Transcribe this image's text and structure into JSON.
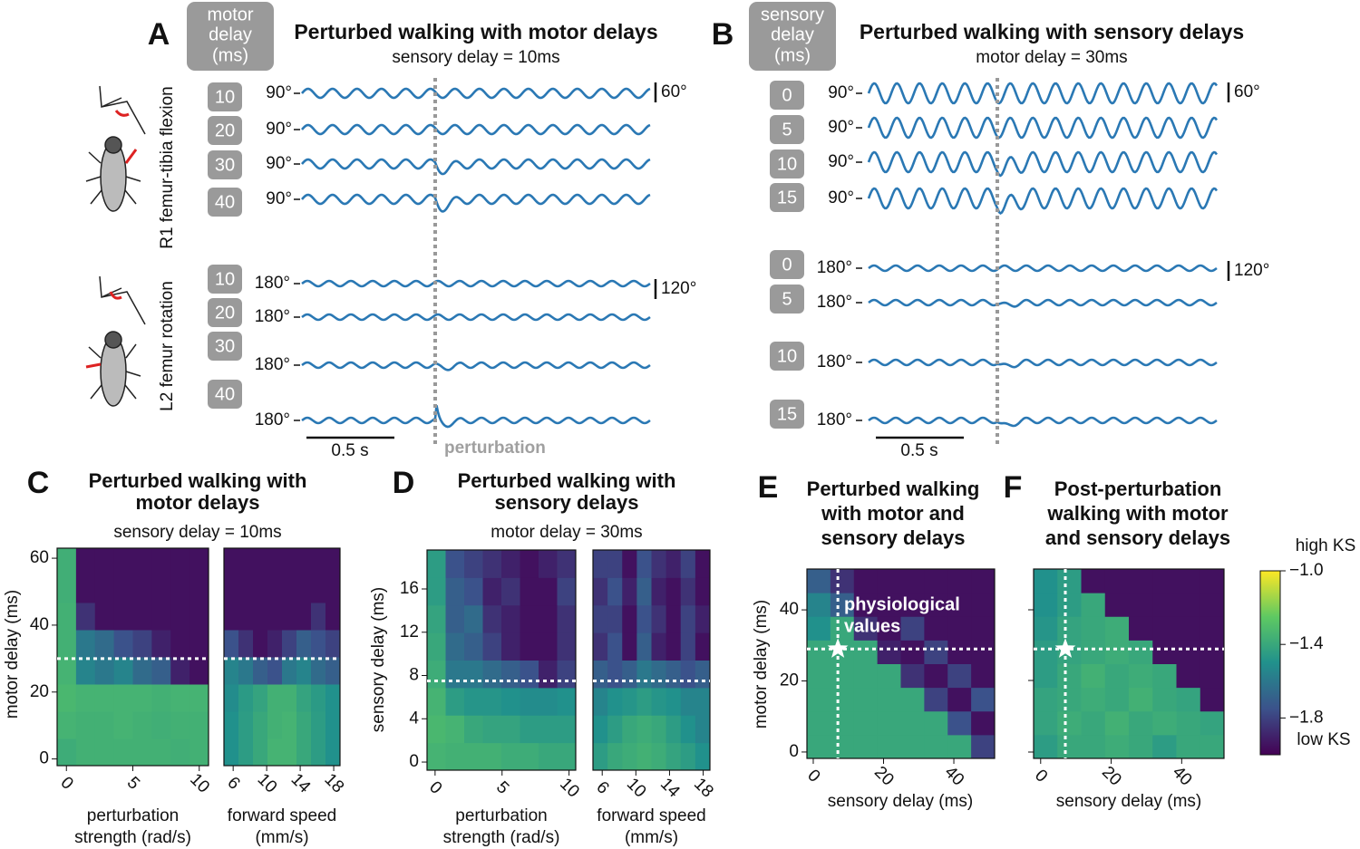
{
  "panel_a": {
    "letter": "A",
    "delay_header": [
      "motor",
      "delay",
      "(ms)"
    ],
    "title": "Perturbed walking with motor delays",
    "subtitle": "sensory delay = 10ms",
    "flexion_label": "R1 femur-tibia flexion",
    "rotation_label": "L2 femur rotation",
    "flexion_delays": [
      10,
      20,
      30,
      40
    ],
    "rotation_delays": [
      10,
      20,
      30,
      40
    ],
    "flexion_offset": "90°",
    "rotation_offset": "180°",
    "flexion_scale": "60°",
    "rotation_scale": "120°",
    "time_scale": "0.5 s",
    "perturbation": "perturbation"
  },
  "panel_b": {
    "letter": "B",
    "delay_header": [
      "sensory",
      "delay",
      "(ms)"
    ],
    "title": "Perturbed walking with sensory delays",
    "subtitle": "motor delay = 30ms",
    "flexion_delays": [
      0,
      5,
      10,
      15
    ],
    "rotation_delays": [
      0,
      5,
      10,
      15
    ],
    "flexion_offset": "90°",
    "rotation_offset": "180°",
    "flexion_scale": "60°",
    "rotation_scale": "120°",
    "time_scale": "0.5 s"
  },
  "panel_c": {
    "letter": "C",
    "title": [
      "Perturbed walking with",
      "motor delays"
    ],
    "subtitle": "sensory delay = 10ms",
    "ylabel": "motor delay (ms)",
    "hline": 30,
    "charts": [
      {
        "type": "heatmap",
        "xlabel": [
          "perturbation",
          "strength (rad/s)"
        ],
        "xlim": [
          -0.7,
          10.7
        ],
        "ylim": [
          -2,
          63
        ],
        "xticks": [
          0,
          5,
          10
        ],
        "yticks": [
          0,
          20,
          40,
          60
        ],
        "values": [
          [
            -1.38,
            -1.36,
            -1.36,
            -1.36,
            -1.36,
            -1.36,
            -1.37,
            -1.36
          ],
          [
            -1.35,
            -1.36,
            -1.36,
            -1.35,
            -1.36,
            -1.37,
            -1.36,
            -1.36
          ],
          [
            -1.33,
            -1.35,
            -1.35,
            -1.35,
            -1.35,
            -1.36,
            -1.35,
            -1.35
          ],
          [
            -1.35,
            -1.55,
            -1.6,
            -1.55,
            -1.65,
            -1.7,
            -1.9,
            -1.95
          ],
          [
            -1.36,
            -1.6,
            -1.65,
            -1.75,
            -1.8,
            -1.9,
            -1.95,
            -1.95
          ],
          [
            -1.36,
            -1.85,
            -1.95,
            -1.95,
            -1.95,
            -1.95,
            -1.95,
            -1.95
          ],
          [
            -1.37,
            -1.95,
            -1.95,
            -1.95,
            -1.95,
            -1.95,
            -1.95,
            -1.95
          ],
          [
            -1.37,
            -1.95,
            -1.95,
            -1.95,
            -1.95,
            -1.95,
            -1.95,
            -1.95
          ]
        ]
      },
      {
        "type": "heatmap",
        "xlabel": [
          "forward speed",
          "(mm/s)"
        ],
        "xlim": [
          4.9,
          18.75
        ],
        "ylim": [
          -2,
          63
        ],
        "xticks": [
          6,
          10,
          14,
          18
        ],
        "values": [
          [
            -1.5,
            -1.45,
            -1.4,
            -1.35,
            -1.35,
            -1.4,
            -1.45,
            -1.5
          ],
          [
            -1.5,
            -1.45,
            -1.4,
            -1.36,
            -1.35,
            -1.4,
            -1.45,
            -1.5
          ],
          [
            -1.52,
            -1.46,
            -1.42,
            -1.36,
            -1.36,
            -1.42,
            -1.46,
            -1.5
          ],
          [
            -1.55,
            -1.6,
            -1.7,
            -1.75,
            -1.6,
            -1.55,
            -1.65,
            -1.7
          ],
          [
            -1.75,
            -1.85,
            -1.95,
            -1.9,
            -1.8,
            -1.7,
            -1.75,
            -1.8
          ],
          [
            -1.95,
            -1.95,
            -1.95,
            -1.95,
            -1.95,
            -1.95,
            -1.85,
            -1.95
          ],
          [
            -1.95,
            -1.95,
            -1.95,
            -1.95,
            -1.95,
            -1.95,
            -1.95,
            -1.95
          ],
          [
            -1.95,
            -1.95,
            -1.95,
            -1.95,
            -1.95,
            -1.95,
            -1.95,
            -1.95
          ]
        ]
      }
    ]
  },
  "panel_d": {
    "letter": "D",
    "title": [
      "Perturbed walking with",
      "sensory delays"
    ],
    "subtitle": "motor delay = 30ms",
    "ylabel": "sensory delay (ms)",
    "hline": 7.5,
    "charts": [
      {
        "type": "heatmap",
        "xlabel": [
          "perturbation",
          "strength (rad/s)"
        ],
        "xlim": [
          -0.6,
          10.5
        ],
        "ylim": [
          -0.75,
          19.6
        ],
        "xticks": [
          0,
          5,
          10
        ],
        "yticks": [
          0,
          4,
          8,
          12,
          16
        ],
        "values": [
          [
            -1.35,
            -1.36,
            -1.36,
            -1.36,
            -1.38,
            -1.38,
            -1.4,
            -1.4
          ],
          [
            -1.33,
            -1.35,
            -1.4,
            -1.42,
            -1.42,
            -1.45,
            -1.45,
            -1.45
          ],
          [
            -1.35,
            -1.45,
            -1.48,
            -1.48,
            -1.5,
            -1.52,
            -1.52,
            -1.5
          ],
          [
            -1.38,
            -1.6,
            -1.6,
            -1.65,
            -1.7,
            -1.75,
            -1.9,
            -1.8
          ],
          [
            -1.4,
            -1.65,
            -1.7,
            -1.8,
            -1.9,
            -1.95,
            -1.95,
            -1.85
          ],
          [
            -1.42,
            -1.7,
            -1.65,
            -1.85,
            -1.9,
            -1.95,
            -1.95,
            -1.85
          ],
          [
            -1.45,
            -1.7,
            -1.75,
            -1.9,
            -1.85,
            -1.95,
            -1.95,
            -1.8
          ],
          [
            -1.45,
            -1.75,
            -1.8,
            -1.85,
            -1.9,
            -1.95,
            -1.9,
            -1.85
          ]
        ]
      },
      {
        "type": "heatmap",
        "xlabel": [
          "forward speed",
          "(mm/s)"
        ],
        "xlim": [
          4.9,
          18.8
        ],
        "ylim": [
          -0.75,
          19.6
        ],
        "xticks": [
          6,
          10,
          14,
          18
        ],
        "values": [
          [
            -1.45,
            -1.4,
            -1.38,
            -1.36,
            -1.38,
            -1.42,
            -1.45,
            -1.5
          ],
          [
            -1.5,
            -1.45,
            -1.4,
            -1.38,
            -1.4,
            -1.45,
            -1.5,
            -1.55
          ],
          [
            -1.55,
            -1.5,
            -1.48,
            -1.45,
            -1.48,
            -1.5,
            -1.55,
            -1.55
          ],
          [
            -1.7,
            -1.75,
            -1.7,
            -1.6,
            -1.65,
            -1.7,
            -1.75,
            -1.7
          ],
          [
            -1.85,
            -1.75,
            -1.95,
            -1.7,
            -1.9,
            -1.95,
            -1.8,
            -1.95
          ],
          [
            -1.8,
            -1.8,
            -1.95,
            -1.75,
            -1.85,
            -1.95,
            -1.8,
            -1.9
          ],
          [
            -1.85,
            -1.75,
            -1.9,
            -1.7,
            -1.9,
            -1.95,
            -1.85,
            -1.95
          ],
          [
            -1.8,
            -1.8,
            -1.95,
            -1.75,
            -1.85,
            -1.9,
            -1.8,
            -1.95
          ]
        ]
      }
    ]
  },
  "panel_e": {
    "letter": "E",
    "title": [
      "Perturbed walking",
      "with motor and",
      "sensory delays"
    ],
    "annotation": [
      "physiological",
      "values"
    ],
    "chart": {
      "type": "heatmap",
      "xlabel": "sensory delay (ms)",
      "ylabel": "motor delay (ms)",
      "xlim": [
        -1.8,
        51.6
      ],
      "ylim": [
        -1.8,
        51.5
      ],
      "xticks": [
        0,
        20,
        40
      ],
      "yticks": [
        0,
        20,
        40
      ],
      "hline": 29,
      "vline": 7,
      "values": [
        [
          -1.4,
          -1.4,
          -1.4,
          -1.4,
          -1.4,
          -1.4,
          -1.4,
          -1.8
        ],
        [
          -1.4,
          -1.4,
          -1.4,
          -1.4,
          -1.4,
          -1.4,
          -1.75,
          -1.95
        ],
        [
          -1.4,
          -1.4,
          -1.4,
          -1.4,
          -1.4,
          -1.8,
          -1.95,
          -1.75
        ],
        [
          -1.4,
          -1.4,
          -1.4,
          -1.4,
          -1.85,
          -1.95,
          -1.8,
          -1.95
        ],
        [
          -1.4,
          -1.4,
          -1.4,
          -1.9,
          -1.95,
          -1.8,
          -1.95,
          -1.95
        ],
        [
          -1.5,
          -1.4,
          -1.85,
          -1.95,
          -1.8,
          -1.95,
          -1.95,
          -1.95
        ],
        [
          -1.55,
          -1.7,
          -1.95,
          -1.95,
          -1.95,
          -1.95,
          -1.95,
          -1.95
        ],
        [
          -1.7,
          -1.85,
          -1.95,
          -1.95,
          -1.95,
          -1.95,
          -1.95,
          -1.95
        ]
      ]
    }
  },
  "panel_f": {
    "letter": "F",
    "title": [
      "Post-perturbation",
      "walking with motor",
      "and sensory delays"
    ],
    "chart": {
      "type": "heatmap",
      "xlabel": "sensory delay (ms)",
      "xlim": [
        -2,
        52
      ],
      "ylim": [
        -1.8,
        51.5
      ],
      "xticks": [
        0,
        20,
        40
      ],
      "hline": 29,
      "vline": 7,
      "values": [
        [
          -1.45,
          -1.4,
          -1.4,
          -1.38,
          -1.4,
          -1.45,
          -1.4,
          -1.4
        ],
        [
          -1.42,
          -1.38,
          -1.4,
          -1.36,
          -1.4,
          -1.38,
          -1.4,
          -1.42
        ],
        [
          -1.42,
          -1.4,
          -1.38,
          -1.4,
          -1.36,
          -1.4,
          -1.42,
          -1.95
        ],
        [
          -1.45,
          -1.4,
          -1.36,
          -1.4,
          -1.38,
          -1.4,
          -1.95,
          -1.95
        ],
        [
          -1.45,
          -1.42,
          -1.4,
          -1.38,
          -1.4,
          -1.95,
          -1.95,
          -1.95
        ],
        [
          -1.48,
          -1.42,
          -1.4,
          -1.38,
          -1.95,
          -1.95,
          -1.95,
          -1.95
        ],
        [
          -1.5,
          -1.45,
          -1.4,
          -1.95,
          -1.95,
          -1.95,
          -1.95,
          -1.95
        ],
        [
          -1.5,
          -1.45,
          -1.95,
          -1.95,
          -1.95,
          -1.95,
          -1.95,
          -1.95
        ]
      ]
    }
  },
  "colorbar": {
    "high": "high KS",
    "low": "low KS",
    "clim": [
      -2,
      -1
    ],
    "ticks": [
      {
        "value": -1,
        "label": "−1.0"
      },
      {
        "value": -1.4,
        "label": "−1.4"
      },
      {
        "value": -1.8,
        "label": "−1.8"
      }
    ]
  }
}
